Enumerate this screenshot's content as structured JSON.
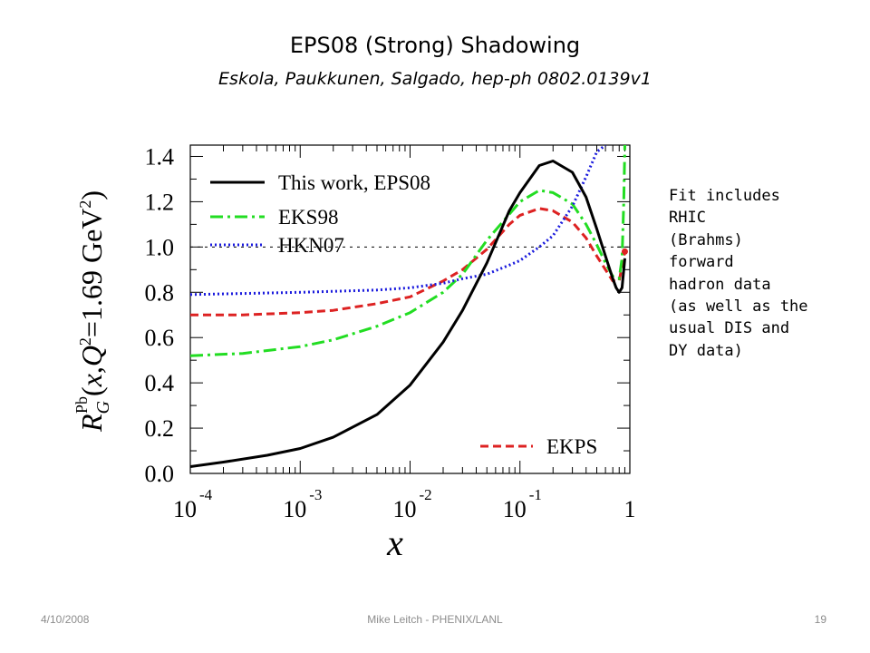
{
  "slide": {
    "title": "EPS08 (Strong) Shadowing",
    "subtitle": "Eskola, Paukkunen, Salgado, hep-ph 0802.0139v1",
    "note_lines": [
      "Fit includes",
      "RHIC",
      "(Brahms)",
      "forward",
      "hadron data",
      "(as well as the",
      "usual DIS and",
      "DY data)"
    ]
  },
  "footer": {
    "date": "4/10/2008",
    "center": "Mike Leitch - PHENIX/LANL",
    "page": "19"
  },
  "chart_data": {
    "type": "line",
    "x_scale": "log",
    "xlim": [
      0.0001,
      1
    ],
    "ylim": [
      0.0,
      1.45
    ],
    "xlabel": "x",
    "ylabel": "R_G^Pb(x,Q^2=1.69 GeV^2)",
    "x_ticks": [
      {
        "value": 0.0001,
        "base": "10",
        "exp": "-4"
      },
      {
        "value": 0.001,
        "base": "10",
        "exp": "-3"
      },
      {
        "value": 0.01,
        "base": "10",
        "exp": "-2"
      },
      {
        "value": 0.1,
        "base": "10",
        "exp": "-1"
      },
      {
        "value": 1,
        "base": "1",
        "exp": ""
      }
    ],
    "y_ticks": [
      "0.0",
      "0.2",
      "0.4",
      "0.6",
      "0.8",
      "1.0",
      "1.2",
      "1.4"
    ],
    "reference_line": 1.0,
    "legend_placement": "top-left",
    "series": [
      {
        "name": "This work, EPS08",
        "color": "#000000",
        "style": "solid",
        "x": [
          0.0001,
          0.0002,
          0.0005,
          0.001,
          0.002,
          0.005,
          0.01,
          0.02,
          0.03,
          0.05,
          0.08,
          0.1,
          0.15,
          0.2,
          0.3,
          0.4,
          0.5,
          0.6,
          0.7,
          0.75,
          0.8,
          0.85,
          0.9
        ],
        "y": [
          0.03,
          0.05,
          0.08,
          0.11,
          0.16,
          0.26,
          0.39,
          0.58,
          0.72,
          0.93,
          1.16,
          1.24,
          1.36,
          1.38,
          1.33,
          1.22,
          1.08,
          0.96,
          0.86,
          0.82,
          0.8,
          0.82,
          0.95
        ]
      },
      {
        "name": "EKS98",
        "color": "#22dd22",
        "style": "dash-dot",
        "x": [
          0.0001,
          0.0003,
          0.001,
          0.002,
          0.005,
          0.01,
          0.02,
          0.03,
          0.05,
          0.1,
          0.15,
          0.2,
          0.3,
          0.4,
          0.5,
          0.6,
          0.7,
          0.8,
          0.85,
          0.88,
          0.9
        ],
        "y": [
          0.52,
          0.53,
          0.56,
          0.59,
          0.65,
          0.71,
          0.8,
          0.88,
          1.03,
          1.2,
          1.25,
          1.24,
          1.19,
          1.1,
          1.01,
          0.93,
          0.87,
          0.86,
          0.95,
          1.2,
          1.45
        ]
      },
      {
        "name": "HKN07",
        "color": "#1a1add",
        "style": "dotted",
        "x": [
          0.0001,
          0.001,
          0.005,
          0.01,
          0.02,
          0.03,
          0.05,
          0.08,
          0.1,
          0.15,
          0.2,
          0.3,
          0.4,
          0.5,
          0.6
        ],
        "y": [
          0.79,
          0.8,
          0.81,
          0.82,
          0.84,
          0.86,
          0.88,
          0.92,
          0.94,
          1.0,
          1.05,
          1.18,
          1.31,
          1.42,
          1.45
        ]
      },
      {
        "name": "EKPS",
        "color": "#dd2222",
        "style": "dashed",
        "x": [
          0.0001,
          0.0003,
          0.001,
          0.002,
          0.005,
          0.01,
          0.02,
          0.03,
          0.05,
          0.08,
          0.1,
          0.15,
          0.2,
          0.3,
          0.4,
          0.5,
          0.6,
          0.7,
          0.8,
          0.9
        ],
        "y": [
          0.7,
          0.7,
          0.71,
          0.72,
          0.75,
          0.78,
          0.85,
          0.9,
          0.99,
          1.1,
          1.14,
          1.17,
          1.16,
          1.11,
          1.04,
          0.96,
          0.9,
          0.85,
          0.85,
          0.98
        ]
      }
    ]
  }
}
